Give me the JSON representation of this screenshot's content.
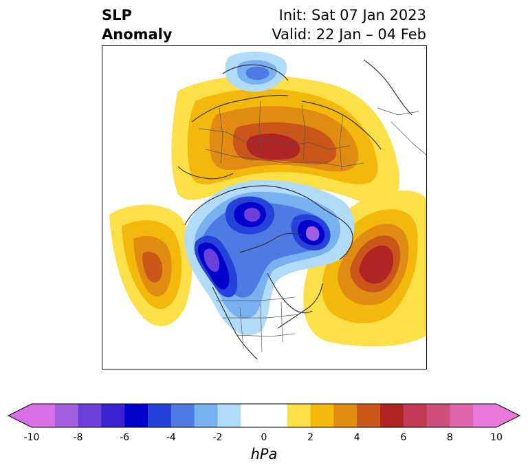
{
  "title": {
    "line1": "SLP",
    "line2": "Anomaly"
  },
  "init": {
    "line1": "Init: Sat 07 Jan 2023",
    "line2": "Valid: 22 Jan – 04 Feb"
  },
  "colorbar": {
    "units": "hPa",
    "ticks": [
      "-10",
      "-8",
      "-6",
      "-4",
      "-2",
      "0",
      "2",
      "4",
      "6",
      "8",
      "10"
    ],
    "colors": [
      "#d96fe6",
      "#a35ee0",
      "#6a3fda",
      "#3b22d3",
      "#0000cc",
      "#2643d9",
      "#4f79e3",
      "#79b0f0",
      "#b0dcfa",
      "#ffffff",
      "#ffffff",
      "#fde047",
      "#f3b80c",
      "#e08b12",
      "#c9571a",
      "#b12424",
      "#c23a55",
      "#d14f7d",
      "#de64aa",
      "#e97ad9"
    ],
    "extend_low_color": "#d96fe6",
    "extend_high_color": "#e97ad9"
  },
  "map_data": {
    "field": "SLP anomaly",
    "levels": {
      "pos1": "#fde047",
      "pos2": "#f3b80c",
      "pos3": "#e08b12",
      "pos4": "#c9571a",
      "pos5": "#b12424",
      "neg1": "#b0dcfa",
      "neg2": "#79b0f0",
      "neg3": "#4f79e3",
      "neg4": "#2643d9",
      "neg5": "#0000cc",
      "neg6": "#3b22d3",
      "neg7": "#6a3fda",
      "neg8": "#a35ee0"
    }
  }
}
